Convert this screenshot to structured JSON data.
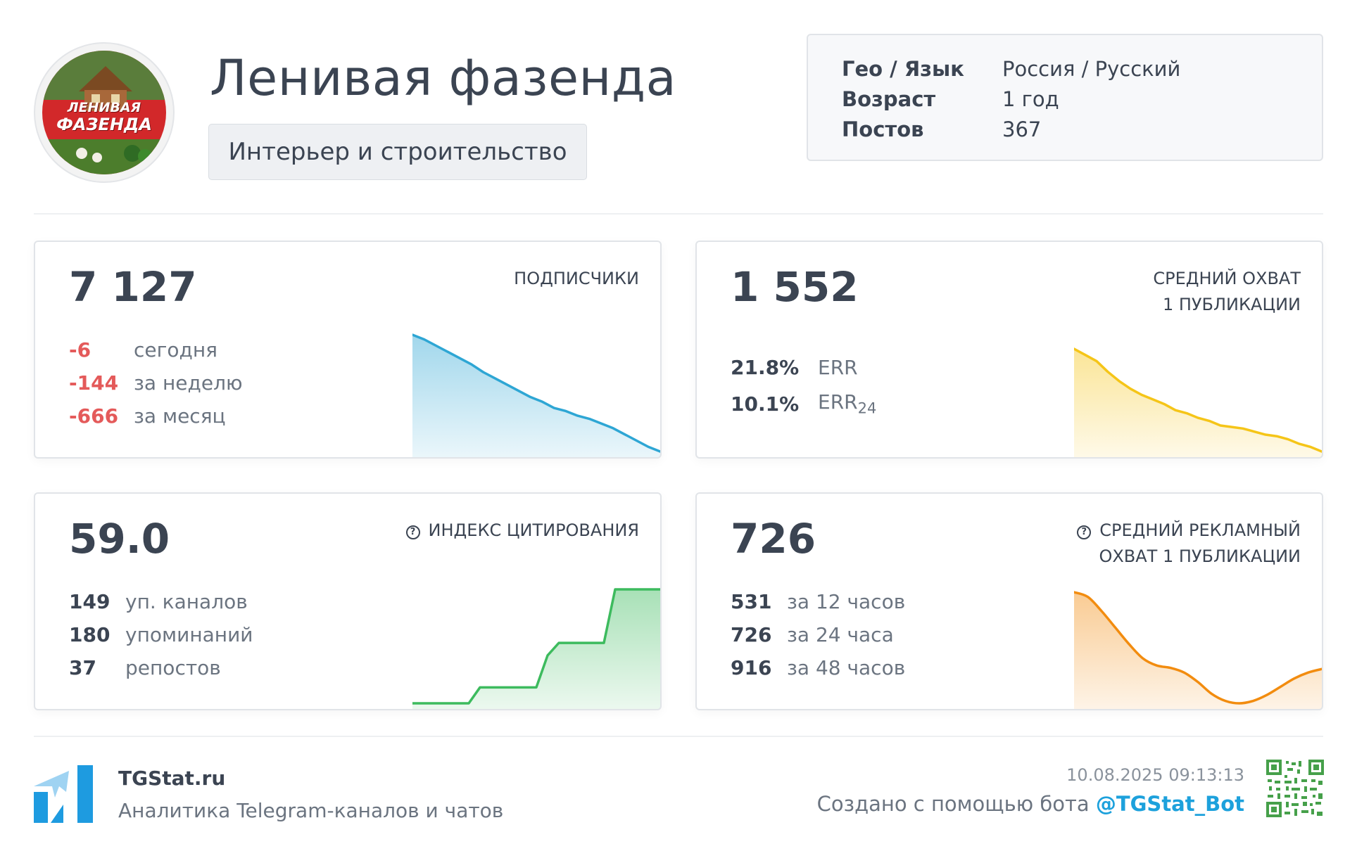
{
  "channel": {
    "avatar_text_line1": "ЛЕНИВАЯ",
    "avatar_text_line2": "ФАЗЕНДА",
    "title": "Ленивая фазенда",
    "category": "Интерьер и строительство"
  },
  "info": [
    {
      "key": "Гео / Язык",
      "value": "Россия / Русский"
    },
    {
      "key": "Возраст",
      "value": "1 год"
    },
    {
      "key": "Постов",
      "value": "367"
    }
  ],
  "subscribers": {
    "value": "7 127",
    "label": "ПОДПИСЧИКИ",
    "rows": [
      {
        "num": "-6",
        "text": "сегодня"
      },
      {
        "num": "-144",
        "text": "за неделю"
      },
      {
        "num": "-666",
        "text": "за месяц"
      }
    ],
    "color": "#2ea6d4"
  },
  "reach": {
    "value": "1 552",
    "label_line1": "СРЕДНИЙ ОХВАТ",
    "label_line2": "1 ПУБЛИКАЦИИ",
    "err_value": "21.8%",
    "err_label": "ERR",
    "err24_value": "10.1%",
    "err24_label": "ERR",
    "err24_sub": "24",
    "color": "#f5c518"
  },
  "citation": {
    "value": "59.0",
    "label": "ИНДЕКС ЦИТИРОВАНИЯ",
    "rows": [
      {
        "num": "149",
        "text": "уп. каналов"
      },
      {
        "num": "180",
        "text": "упоминаний"
      },
      {
        "num": "37",
        "text": "репостов"
      }
    ],
    "color": "#3dbb5e"
  },
  "ad_reach": {
    "value": "726",
    "label_line1": "СРЕДНИЙ РЕКЛАМНЫЙ",
    "label_line2": "ОХВАТ 1 ПУБЛИКАЦИИ",
    "rows": [
      {
        "num": "531",
        "text": "за 12 часов"
      },
      {
        "num": "726",
        "text": "за 24 часа"
      },
      {
        "num": "916",
        "text": "за 48 часов"
      }
    ],
    "color": "#f28c0f"
  },
  "footer": {
    "brand": "TGStat.ru",
    "tagline": "Аналитика Telegram-каналов и чатов",
    "timestamp": "10.08.2025 09:13:13",
    "created_prefix": "Создано с помощью бота ",
    "bot": "@TGStat_Bot"
  },
  "chart_data": [
    {
      "type": "area",
      "series": [
        {
          "values": [
            100,
            97,
            93,
            89,
            85,
            81,
            76,
            72,
            68,
            64,
            60,
            57,
            53,
            51,
            48,
            46,
            43,
            40,
            36,
            32,
            28,
            25
          ]
        }
      ]
    },
    {
      "type": "area",
      "series": [
        {
          "values": [
            100,
            96,
            92,
            85,
            79,
            74,
            70,
            67,
            64,
            60,
            58,
            55,
            53,
            50,
            49,
            48,
            46,
            44,
            43,
            41,
            38,
            36,
            33
          ]
        }
      ]
    },
    {
      "type": "area",
      "series": [
        {
          "values": [
            0,
            0,
            0,
            0,
            0,
            0,
            14,
            14,
            14,
            14,
            14,
            14,
            42,
            53,
            53,
            53,
            53,
            53,
            100,
            100,
            100,
            100,
            100
          ]
        }
      ]
    },
    {
      "type": "area",
      "series": [
        {
          "values": [
            100,
            96,
            84,
            70,
            56,
            44,
            38,
            36,
            32,
            24,
            14,
            8,
            6,
            8,
            13,
            20,
            27,
            32,
            35
          ]
        }
      ]
    }
  ]
}
